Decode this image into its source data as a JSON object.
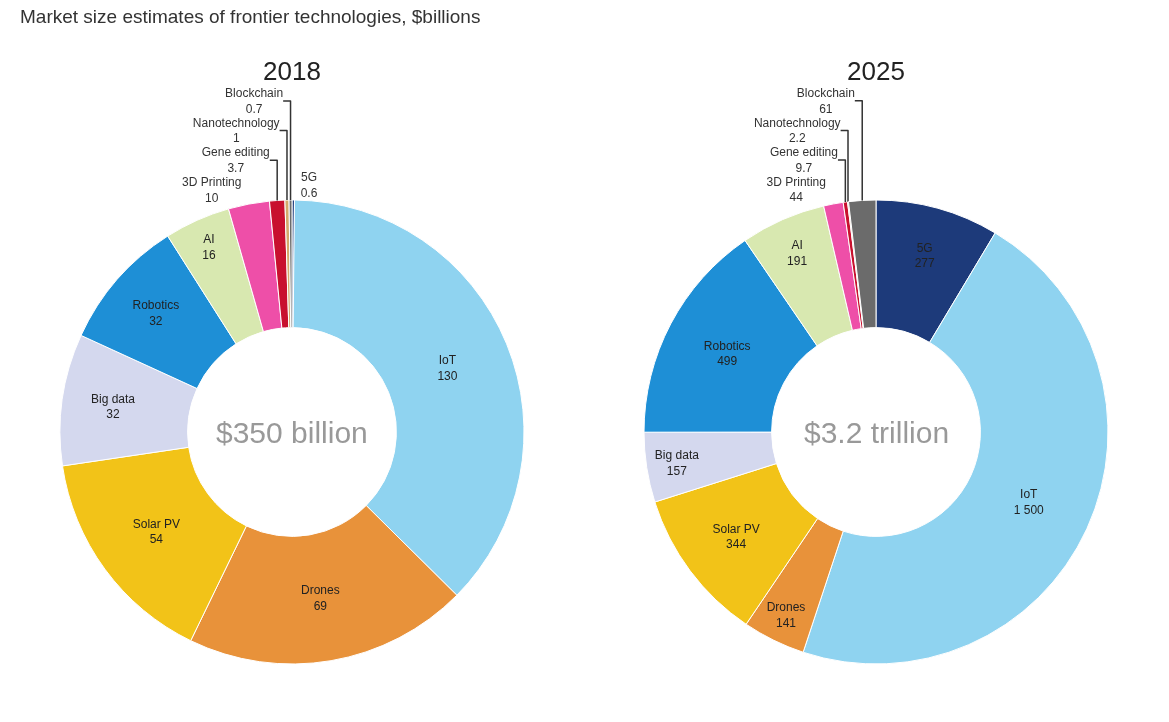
{
  "chart_data": [
    {
      "type": "donut",
      "title": "Market size estimates of frontier technologies, $billions",
      "subtitle": "2018",
      "categories": [
        "5G",
        "IoT",
        "Drones",
        "Solar PV",
        "Big data",
        "Robotics",
        "AI",
        "3D Printing",
        "Gene editing",
        "Nanotechnology",
        "Blockchain"
      ],
      "values": [
        0.6,
        130,
        69,
        54,
        32,
        32,
        16,
        10,
        3.7,
        1,
        0.7
      ],
      "colors": [
        "#1d3a7a",
        "#8fd3f0",
        "#e8923a",
        "#f2c318",
        "#d4d8ee",
        "#1e8fd6",
        "#d8e8b0",
        "#ee4fa8",
        "#c8102e",
        "#d4a96a",
        "#6b6b6b"
      ],
      "data_labels": true,
      "annotations": [
        "$350 billion"
      ]
    },
    {
      "type": "donut",
      "subtitle": "2025",
      "categories": [
        "5G",
        "IoT",
        "Drones",
        "Solar PV",
        "Big data",
        "Robotics",
        "AI",
        "3D Printing",
        "Gene editing",
        "Nanotechnology",
        "Blockchain"
      ],
      "values": [
        277,
        1500,
        141,
        344,
        157,
        499,
        191,
        44,
        9.7,
        2.2,
        61
      ],
      "colors": [
        "#1d3a7a",
        "#8fd3f0",
        "#e8923a",
        "#f2c318",
        "#d4d8ee",
        "#1e8fd6",
        "#d8e8b0",
        "#ee4fa8",
        "#c8102e",
        "#d4a96a",
        "#6b6b6b"
      ],
      "value_labels": [
        "277",
        "1 500",
        "141",
        "344",
        "157",
        "499",
        "191",
        "44",
        "9.7",
        "2.2",
        "61"
      ],
      "annotations": [
        "$3.2 trillion"
      ]
    }
  ]
}
